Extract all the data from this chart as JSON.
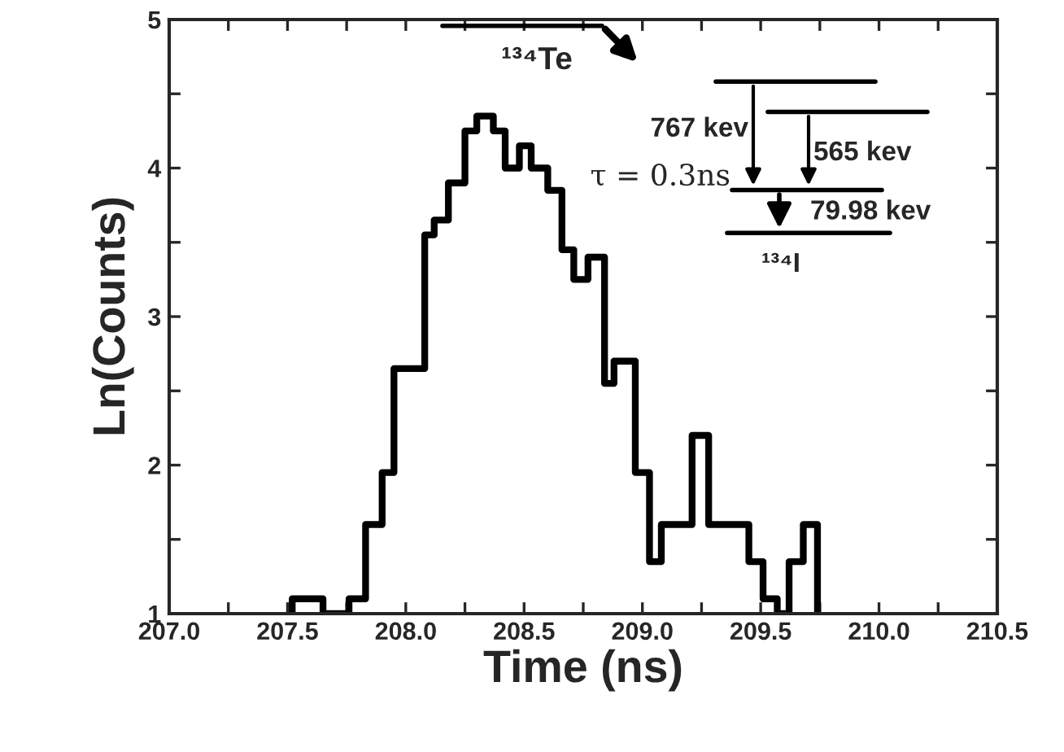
{
  "chart_data": {
    "type": "histogram",
    "xlabel": "Time (ns)",
    "ylabel": "Ln(Counts)",
    "color": "#000000",
    "bins": [
      207.52,
      207.65,
      207.76,
      207.83,
      207.9,
      207.95,
      208.08,
      208.12,
      208.18,
      208.25,
      208.3,
      208.37,
      208.42,
      208.48,
      208.53,
      208.6,
      208.66,
      208.71,
      208.77,
      208.84,
      208.88,
      208.97,
      209.03,
      209.08,
      209.21,
      209.28,
      209.45,
      209.51,
      209.57,
      209.62,
      209.68,
      209.74
    ],
    "values": [
      1.1,
      1.0,
      1.1,
      1.6,
      1.95,
      2.65,
      3.55,
      3.65,
      3.9,
      4.25,
      4.35,
      4.25,
      4.0,
      4.15,
      4.0,
      3.85,
      3.45,
      3.25,
      3.4,
      2.55,
      2.7,
      1.95,
      1.35,
      1.6,
      2.2,
      1.6,
      1.35,
      1.1,
      1.0,
      1.35,
      1.6
    ],
    "xlim": [
      207.0,
      210.5
    ],
    "ylim": [
      1,
      5
    ],
    "xticks": [
      {
        "value": 207.0,
        "label": "207.0"
      },
      {
        "value": 207.25,
        "label": null
      },
      {
        "value": 207.5,
        "label": "207.5"
      },
      {
        "value": 207.75,
        "label": null
      },
      {
        "value": 208.0,
        "label": "208.0"
      },
      {
        "value": 208.25,
        "label": null
      },
      {
        "value": 208.5,
        "label": "208.5"
      },
      {
        "value": 208.75,
        "label": null
      },
      {
        "value": 209.0,
        "label": "209.0"
      },
      {
        "value": 209.25,
        "label": null
      },
      {
        "value": 209.5,
        "label": "209.5"
      },
      {
        "value": 209.75,
        "label": null
      },
      {
        "value": 210.0,
        "label": "210.0"
      },
      {
        "value": 210.25,
        "label": null
      },
      {
        "value": 210.5,
        "label": "210.5"
      }
    ],
    "yticks": [
      1,
      {
        "value": 1.5,
        "label": null
      },
      2,
      {
        "value": 2.5,
        "label": null
      },
      3,
      {
        "value": 3.5,
        "label": null
      },
      4,
      {
        "value": 4.5,
        "label": null
      },
      5
    ],
    "annotations": [
      "¹³⁴Te",
      "767 kev",
      "565 kev",
      "τ = 0.3ns",
      "79.98 kev",
      "¹³⁴I"
    ]
  }
}
